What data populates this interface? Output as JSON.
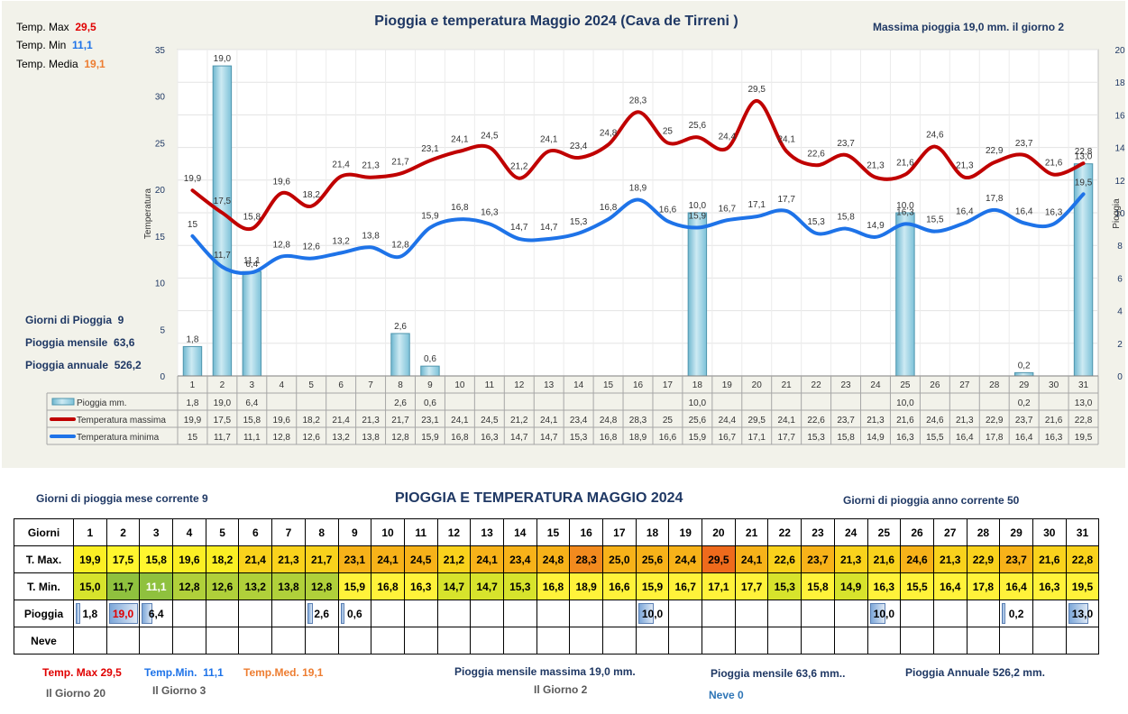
{
  "summary_top": {
    "tmax_label": "Temp. Max",
    "tmax_value": "29,5",
    "tmin_label": "Temp. Min",
    "tmin_value": "11,1",
    "tmed_label": "Temp. Media",
    "tmed_value": "19,1",
    "rain_days_label": "Giorni di Pioggia",
    "rain_days_value": "9",
    "rain_month_label": "Pioggia mensile",
    "rain_month_value": "63,6",
    "rain_year_label": "Pioggia annuale",
    "rain_year_value": "526,2",
    "max_rain_text": "Massima pioggia 19,0 mm. il giorno  2"
  },
  "colors": {
    "tmax": "#c00000",
    "tmin": "#1e73e8",
    "bar": "#9fd3e6",
    "tmax_text": "#e00000",
    "tmin_text": "#1e73e8",
    "tmed_text": "#ed7d31"
  },
  "chart_data": {
    "type": "bar",
    "title": "Pioggia e temperatura Maggio 2024 (Cava de Tirreni )",
    "ylabel": "Temperatura",
    "y2label": "Pioggia",
    "ylim": [
      0,
      35
    ],
    "y2lim": [
      0,
      20
    ],
    "yticks": [
      "0",
      "5",
      "10",
      "15",
      "20",
      "25",
      "30",
      "35"
    ],
    "y2ticks": [
      "0",
      "2",
      "4",
      "6",
      "8",
      "10",
      "12",
      "14",
      "16",
      "18",
      "20"
    ],
    "categories": [
      "1",
      "2",
      "3",
      "4",
      "5",
      "6",
      "7",
      "8",
      "9",
      "10",
      "11",
      "12",
      "13",
      "14",
      "15",
      "16",
      "17",
      "18",
      "19",
      "20",
      "21",
      "22",
      "23",
      "24",
      "25",
      "26",
      "27",
      "28",
      "29",
      "30",
      "31"
    ],
    "series": [
      {
        "name": "Pioggia mm.",
        "type": "bar",
        "axis": "right",
        "values": [
          1.8,
          19.0,
          6.4,
          null,
          null,
          null,
          null,
          2.6,
          0.6,
          null,
          null,
          null,
          null,
          null,
          null,
          null,
          null,
          10.0,
          null,
          null,
          null,
          null,
          null,
          null,
          10.0,
          null,
          null,
          null,
          0.2,
          null,
          13.0
        ],
        "labels": [
          "1,8",
          "19,0",
          "6,4",
          "",
          "",
          "",
          "",
          "2,6",
          "0,6",
          "",
          "",
          "",
          "",
          "",
          "",
          "",
          "",
          "10,0",
          "",
          "",
          "",
          "",
          "",
          "",
          "10,0",
          "",
          "",
          "",
          "0,2",
          "",
          "13,0"
        ]
      },
      {
        "name": "Temperatura massima",
        "type": "line",
        "axis": "left",
        "values": [
          19.9,
          17.5,
          15.8,
          19.6,
          18.2,
          21.4,
          21.3,
          21.7,
          23.1,
          24.1,
          24.5,
          21.2,
          24.1,
          23.4,
          24.8,
          28.3,
          25,
          25.6,
          24.4,
          29.5,
          24.1,
          22.6,
          23.7,
          21.3,
          21.6,
          24.6,
          21.3,
          22.9,
          23.7,
          21.6,
          22.8
        ],
        "labels": [
          "19,9",
          "17,5",
          "15,8",
          "19,6",
          "18,2",
          "21,4",
          "21,3",
          "21,7",
          "23,1",
          "24,1",
          "24,5",
          "21,2",
          "24,1",
          "23,4",
          "24,8",
          "28,3",
          "25",
          "25,6",
          "24,4",
          "29,5",
          "24,1",
          "22,6",
          "23,7",
          "21,3",
          "21,6",
          "24,6",
          "21,3",
          "22,9",
          "23,7",
          "21,6",
          "22,8"
        ]
      },
      {
        "name": "Temperatura minima",
        "type": "line",
        "axis": "left",
        "values": [
          15,
          11.7,
          11.1,
          12.8,
          12.6,
          13.2,
          13.8,
          12.8,
          15.9,
          16.8,
          16.3,
          14.7,
          14.7,
          15.3,
          16.8,
          18.9,
          16.6,
          15.9,
          16.7,
          17.1,
          17.7,
          15.3,
          15.8,
          14.9,
          16.3,
          15.5,
          16.4,
          17.8,
          16.4,
          16.3,
          19.5
        ],
        "labels": [
          "15",
          "11,7",
          "11,1",
          "12,8",
          "12,6",
          "13,2",
          "13,8",
          "12,8",
          "15,9",
          "16,8",
          "16,3",
          "14,7",
          "14,7",
          "15,3",
          "16,8",
          "18,9",
          "16,6",
          "15,9",
          "16,7",
          "17,1",
          "17,7",
          "15,3",
          "15,8",
          "14,9",
          "16,3",
          "15,5",
          "16,4",
          "17,8",
          "16,4",
          "16,3",
          "19,5"
        ]
      }
    ]
  },
  "table": {
    "title": "PIOGGIA E TEMPERATURA MAGGIO 2024",
    "left_note": "Giorni di pioggia mese corrente   9",
    "right_note": "Giorni di pioggia anno corrente  50",
    "row_labels": {
      "days": "Giorni",
      "tmax": "T. Max.",
      "tmin": "T. Min.",
      "rain": "Pioggia",
      "snow": "Neve"
    },
    "days": [
      "1",
      "2",
      "3",
      "4",
      "5",
      "6",
      "7",
      "8",
      "9",
      "10",
      "11",
      "12",
      "13",
      "14",
      "15",
      "16",
      "17",
      "18",
      "19",
      "20",
      "21",
      "22",
      "23",
      "24",
      "25",
      "26",
      "27",
      "28",
      "29",
      "30",
      "31"
    ],
    "tmax": [
      "19,9",
      "17,5",
      "15,8",
      "19,6",
      "18,2",
      "21,4",
      "21,3",
      "21,7",
      "23,1",
      "24,1",
      "24,5",
      "21,2",
      "24,1",
      "23,4",
      "24,8",
      "28,3",
      "25,0",
      "25,6",
      "24,4",
      "29,5",
      "24,1",
      "22,6",
      "23,7",
      "21,3",
      "21,6",
      "24,6",
      "21,3",
      "22,9",
      "23,7",
      "21,6",
      "22,8"
    ],
    "tmin": [
      "15,0",
      "11,7",
      "11,1",
      "12,8",
      "12,6",
      "13,2",
      "13,8",
      "12,8",
      "15,9",
      "16,8",
      "16,3",
      "14,7",
      "14,7",
      "15,3",
      "16,8",
      "18,9",
      "16,6",
      "15,9",
      "16,7",
      "17,1",
      "17,7",
      "15,3",
      "15,8",
      "14,9",
      "16,3",
      "15,5",
      "16,4",
      "17,8",
      "16,4",
      "16,3",
      "19,5"
    ],
    "rain": [
      "1,8",
      "19,0",
      "6,4",
      "",
      "",
      "",
      "",
      "2,6",
      "0,6",
      "",
      "",
      "",
      "",
      "",
      "",
      "",
      "",
      "10,0",
      "",
      "",
      "",
      "",
      "",
      "",
      "10,0",
      "",
      "",
      "",
      "0,2",
      "",
      "13,0"
    ],
    "snow": [
      "",
      "",
      "",
      "",
      "",
      "",
      "",
      "",
      "",
      "",
      "",
      "",
      "",
      "",
      "",
      "",
      "",
      "",
      "",
      "",
      "",
      "",
      "",
      "",
      "",
      "",
      "",
      "",
      "",
      "",
      ""
    ]
  },
  "footer": {
    "tmax_label": "Temp. Max",
    "tmax_value": "29,5",
    "tmax_day": "Il Giorno  20",
    "tmin_label": "Temp.Min.",
    "tmin_value": "11,1",
    "tmin_day": "Il Giorno  3",
    "tmed_label": "Temp.Med.",
    "tmed_value": "19,1",
    "max_rain_label": "Pioggia mensile massima",
    "max_rain_value": "19,0  mm.",
    "max_rain_day": "Il Giorno  2",
    "rain_month_label": "Pioggia mensile",
    "rain_month_value": "63,6  mm..",
    "snow_text": "Neve 0",
    "rain_year_label": "Pioggia Annuale",
    "rain_year_value": "526,2   mm."
  }
}
